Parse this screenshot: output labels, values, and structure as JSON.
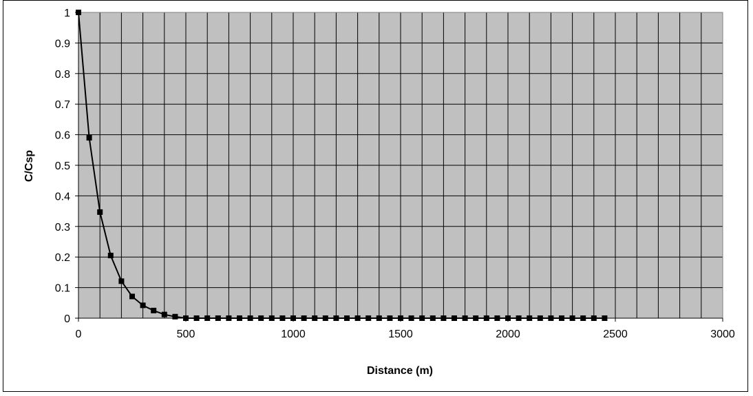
{
  "chart_data": {
    "type": "line",
    "title": "",
    "xlabel": "Distance (m)",
    "ylabel": "C/Csp",
    "xlim": [
      0,
      3000
    ],
    "ylim": [
      0,
      1
    ],
    "x_ticks": [
      0,
      500,
      1000,
      1500,
      2000,
      2500,
      3000
    ],
    "x_tick_labels": [
      "0",
      "500",
      "1000",
      "1500",
      "2000",
      "2500",
      "3000"
    ],
    "y_ticks": [
      0,
      0.1,
      0.2,
      0.3,
      0.4,
      0.5,
      0.6,
      0.7,
      0.8,
      0.9,
      1
    ],
    "y_tick_labels": [
      "0",
      "0.1",
      "0.2",
      "0.3",
      "0.4",
      "0.5",
      "0.6",
      "0.7",
      "0.8",
      "0.9",
      "1"
    ],
    "x_minor_step": 100,
    "grid": true,
    "legend": "none",
    "plot_background": "#c0c0c0",
    "line_color": "#000000",
    "marker": "square",
    "series": [
      {
        "x": [
          0,
          50,
          100,
          150,
          200,
          250,
          300,
          350,
          400,
          450,
          500,
          550,
          600,
          650,
          700,
          750,
          800,
          850,
          900,
          950,
          1000,
          1050,
          1100,
          1150,
          1200,
          1250,
          1300,
          1350,
          1400,
          1450,
          1500,
          1550,
          1600,
          1650,
          1700,
          1750,
          1800,
          1850,
          1900,
          1950,
          2000,
          2050,
          2100,
          2150,
          2200,
          2250,
          2300,
          2350,
          2400,
          2450
        ],
        "values": [
          1,
          0.59,
          0.347,
          0.205,
          0.121,
          0.071,
          0.042,
          0.025,
          0.012,
          0.005,
          0,
          0,
          0,
          0,
          0,
          0,
          0,
          0,
          0,
          0,
          0,
          0,
          0,
          0,
          0,
          0,
          0,
          0,
          0,
          0,
          0,
          0,
          0,
          0,
          0,
          0,
          0,
          0,
          0,
          0,
          0,
          0,
          0,
          0,
          0,
          0,
          0,
          0,
          0,
          0
        ]
      }
    ]
  }
}
